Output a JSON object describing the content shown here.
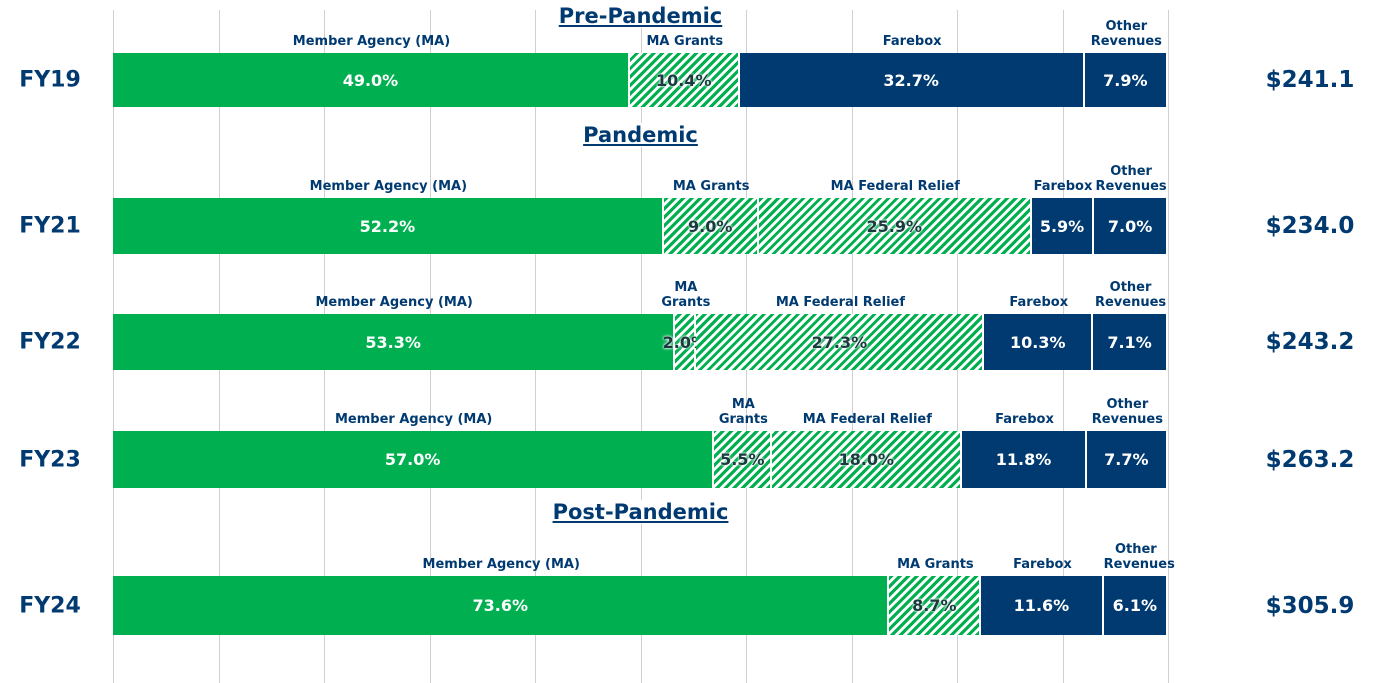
{
  "chart_data": {
    "type": "stacked-bar",
    "xlim": [
      0,
      100
    ],
    "xticks": [
      0,
      10,
      20,
      30,
      40,
      50,
      60,
      70,
      80,
      90,
      100
    ],
    "grid": true,
    "groups": [
      {
        "title": "Pre-Pandemic",
        "rows": [
          {
            "label": "FY19",
            "total": 241.1,
            "total_label": "$241.1",
            "segments": [
              {
                "name": "Member Agency (MA)",
                "value": 49,
                "value_label": "49.0%",
                "color": "#00b050",
                "pattern": "solid"
              },
              {
                "name": "MA Grants",
                "value": 10.4,
                "value_label": "10.4%",
                "color": "#00b050",
                "pattern": "hatch"
              },
              {
                "name": "Farebox",
                "value": 32.7,
                "value_label": "32.7%",
                "color": "#003a70",
                "pattern": "solid"
              },
              {
                "name": "Other Revenues",
                "value": 7.9,
                "value_label": "7.9%",
                "color": "#003a70",
                "pattern": "solid"
              }
            ]
          }
        ]
      },
      {
        "title": "Pandemic",
        "rows": [
          {
            "label": "FY21",
            "total": 234,
            "total_label": "$234.0",
            "segments": [
              {
                "name": "Member Agency (MA)",
                "value": 52.2,
                "value_label": "52.2%",
                "color": "#00b050",
                "pattern": "solid"
              },
              {
                "name": "MA Grants",
                "value": 9,
                "value_label": "9.0%",
                "color": "#00b050",
                "pattern": "hatch"
              },
              {
                "name": "MA Federal Relief",
                "value": 25.9,
                "value_label": "25.9%",
                "color": "#00b050",
                "pattern": "hatch"
              },
              {
                "name": "Farebox",
                "value": 5.9,
                "value_label": "5.9%",
                "color": "#003a70",
                "pattern": "solid"
              },
              {
                "name": "Other Revenues",
                "value": 7,
                "value_label": "7.0%",
                "color": "#003a70",
                "pattern": "solid"
              }
            ]
          },
          {
            "label": "FY22",
            "total": 243.2,
            "total_label": "$243.2",
            "segments": [
              {
                "name": "Member Agency (MA)",
                "value": 53.3,
                "value_label": "53.3%",
                "color": "#00b050",
                "pattern": "solid"
              },
              {
                "name": "MA Grants",
                "value": 2,
                "value_label": "2.0%",
                "color": "#00b050",
                "pattern": "hatch"
              },
              {
                "name": "MA Federal Relief",
                "value": 27.3,
                "value_label": "27.3%",
                "color": "#00b050",
                "pattern": "hatch"
              },
              {
                "name": "Farebox",
                "value": 10.3,
                "value_label": "10.3%",
                "color": "#003a70",
                "pattern": "solid"
              },
              {
                "name": "Other Revenues",
                "value": 7.1,
                "value_label": "7.1%",
                "color": "#003a70",
                "pattern": "solid"
              }
            ]
          },
          {
            "label": "FY23",
            "total": 263.2,
            "total_label": "$263.2",
            "segments": [
              {
                "name": "Member Agency (MA)",
                "value": 57,
                "value_label": "57.0%",
                "color": "#00b050",
                "pattern": "solid"
              },
              {
                "name": "MA Grants",
                "value": 5.5,
                "value_label": "5.5%",
                "color": "#00b050",
                "pattern": "hatch"
              },
              {
                "name": "MA Federal Relief",
                "value": 18,
                "value_label": "18.0%",
                "color": "#00b050",
                "pattern": "hatch"
              },
              {
                "name": "Farebox",
                "value": 11.8,
                "value_label": "11.8%",
                "color": "#003a70",
                "pattern": "solid"
              },
              {
                "name": "Other Revenues",
                "value": 7.7,
                "value_label": "7.7%",
                "color": "#003a70",
                "pattern": "solid"
              }
            ]
          }
        ]
      },
      {
        "title": "Post-Pandemic",
        "rows": [
          {
            "label": "FY24",
            "total": 305.9,
            "total_label": "$305.9",
            "segments": [
              {
                "name": "Member Agency (MA)",
                "value": 73.6,
                "value_label": "73.6%",
                "color": "#00b050",
                "pattern": "solid"
              },
              {
                "name": "MA Grants",
                "value": 8.7,
                "value_label": "8.7%",
                "color": "#00b050",
                "pattern": "hatch"
              },
              {
                "name": "Farebox",
                "value": 11.6,
                "value_label": "11.6%",
                "color": "#003a70",
                "pattern": "solid"
              },
              {
                "name": "Other Revenues",
                "value": 6.1,
                "value_label": "6.1%",
                "color": "#003a70",
                "pattern": "solid"
              }
            ]
          }
        ]
      }
    ]
  }
}
